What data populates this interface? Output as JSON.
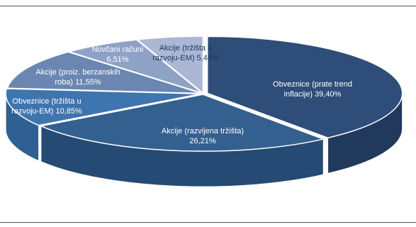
{
  "chart_data": {
    "type": "pie",
    "title": "",
    "legend": "none",
    "slices": [
      {
        "label_lines": [
          "Obveznice (prate trend",
          "inflacije) 39,40%"
        ],
        "value": 39.4,
        "color": "#2e4d78",
        "side": "#20395c",
        "text_color": "#ffffff"
      },
      {
        "label_lines": [
          "Akcije (razvijena tržišta)",
          "26,21%"
        ],
        "value": 26.21,
        "color": "#34608f",
        "side": "#254a73",
        "text_color": "#ffffff"
      },
      {
        "label_lines": [
          "Obveznice (tržišta u",
          "razvoju-EM) 10,85%"
        ],
        "value": 10.85,
        "color": "#3f75ae",
        "side": "#2f5f93",
        "text_color": "#ffffff"
      },
      {
        "label_lines": [
          "Akcije (proiz. berzanskih",
          "roba) 11,55%"
        ],
        "value": 11.55,
        "color": "#6c86b2",
        "side": "#566f99",
        "text_color": "#ffffff"
      },
      {
        "label_lines": [
          "Novčani računi",
          "6,51%"
        ],
        "value": 6.51,
        "color": "#8ea2c6",
        "side": "#7489ad",
        "text_color": "#ffffff"
      },
      {
        "label_lines": [
          "Akcije (tržišta u",
          "razvoju-EM) 5,48%"
        ],
        "value": 5.48,
        "color": "#aab8d5",
        "side": "#8f9fbe",
        "text_color": "#1f3552"
      }
    ]
  }
}
